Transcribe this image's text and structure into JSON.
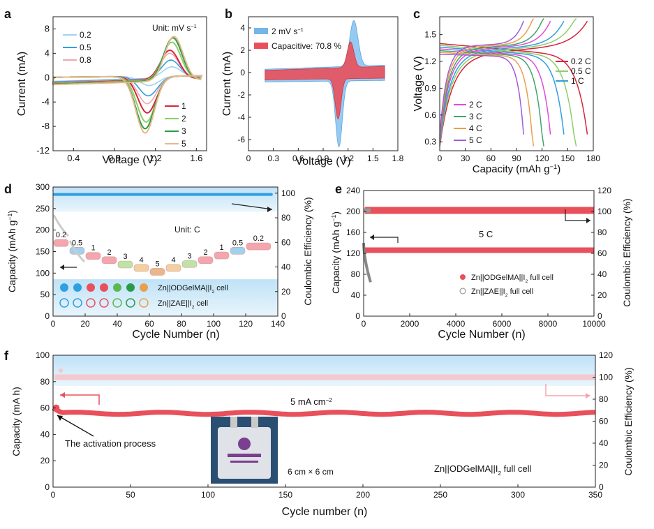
{
  "panels": {
    "a": {
      "letter": "a",
      "unit": "Unit: mV s",
      "unit_sup": "−1",
      "xlabel": "Voltage (V)",
      "ylabel": "Current (mA)"
    },
    "b": {
      "letter": "b",
      "xlabel": "Voltage (V)",
      "ylabel": "Current (mA)"
    },
    "c": {
      "letter": "c",
      "xlabel": "Capacity (mAh g",
      "xlabel_sup": "−1",
      "xlabel_end": ")",
      "ylabel": "Voltage (V)"
    },
    "d": {
      "letter": "d",
      "unit": "Unit: C",
      "xlabel": "Cycle Number (n)",
      "ylabel": "Capacity (mAh g",
      "ylabel_sup": "−1",
      "ylabel_end": ")",
      "y2label": "Coulombic Efficiency (%)"
    },
    "e": {
      "letter": "e",
      "rate_label": "5 C",
      "xlabel": "Cycle Number (n)",
      "ylabel": "Capacity (mAh g",
      "ylabel_sup": "−1",
      "ylabel_end": ")",
      "y2label": "Coulombic Efficiency (%)"
    },
    "f": {
      "letter": "f",
      "current_label": "5 mA cm",
      "current_sup": "−2",
      "activation": "The activation process",
      "size_label": "6 cm × 6 cm",
      "cell_label": "Zn||ODGelMA||I",
      "cell_sub": "2",
      "cell_end": " full cell",
      "xlabel": "Cycle number (n)",
      "ylabel": "Capacity (mA h)",
      "y2label": "Coulombic Efficiency (%)"
    }
  },
  "colors": {
    "blue": "#2f9fe0",
    "red": "#e8505b",
    "pink": "#f3a6ad",
    "lightblue": "#cfe9f8",
    "gray": "#9a9a9a"
  },
  "chart_data": [
    {
      "panel": "a",
      "type": "line",
      "xlim": [
        0.2,
        1.7
      ],
      "ylim": [
        -12,
        10
      ],
      "xticks": [
        0.4,
        0.8,
        1.2,
        1.6
      ],
      "yticks": [
        -12,
        -8,
        -4,
        0,
        4,
        8
      ],
      "series": [
        {
          "name": "0.2",
          "color": "#9ed3f0",
          "ox_peak": [
            1.36,
            1.8
          ],
          "red_peak": [
            1.14,
            -1.5
          ]
        },
        {
          "name": "0.5",
          "color": "#2f9fe0",
          "ox_peak": [
            1.35,
            3.0
          ],
          "red_peak": [
            1.13,
            -3.2
          ]
        },
        {
          "name": "0.8",
          "color": "#f3a6ad",
          "ox_peak": [
            1.34,
            4.2
          ],
          "red_peak": [
            1.12,
            -4.5
          ]
        },
        {
          "name": "1",
          "color": "#d9233b",
          "ox_peak": [
            1.34,
            4.8
          ],
          "red_peak": [
            1.12,
            -6.0
          ]
        },
        {
          "name": "2",
          "color": "#8ccf6a",
          "ox_peak": [
            1.36,
            6.2
          ],
          "red_peak": [
            1.11,
            -7.5
          ]
        },
        {
          "name": "3",
          "color": "#2a9a4a",
          "ox_peak": [
            1.37,
            7.0
          ],
          "red_peak": [
            1.1,
            -8.6
          ]
        },
        {
          "name": "5",
          "color": "#e8b88a",
          "ox_peak": [
            1.38,
            7.3
          ],
          "red_peak": [
            1.1,
            -9.3
          ]
        }
      ]
    },
    {
      "panel": "b",
      "type": "area",
      "xlim": [
        0.0,
        1.8
      ],
      "ylim": [
        -7,
        5
      ],
      "xticks": [
        0.0,
        0.3,
        0.6,
        0.9,
        1.2,
        1.5,
        1.8
      ],
      "yticks": [
        -6,
        -4,
        -2,
        0,
        2,
        4
      ],
      "series": [
        {
          "name": "2 mV s",
          "name_sup": "−1",
          "color": "#76b5e8",
          "ox_peak": [
            1.27,
            4.1
          ],
          "red_peak": [
            1.09,
            -5.9
          ]
        },
        {
          "name": "Capacitive: 70.8 %",
          "color": "#e8505b",
          "ox_peak": [
            1.23,
            2.3
          ],
          "red_peak": [
            1.08,
            -3.6
          ]
        }
      ]
    },
    {
      "panel": "c",
      "type": "line",
      "xlim": [
        0,
        180
      ],
      "ylim": [
        0.2,
        1.7
      ],
      "xticks": [
        0,
        30,
        60,
        90,
        120,
        150,
        180
      ],
      "yticks": [
        0.3,
        0.6,
        0.9,
        1.2,
        1.5
      ],
      "series": [
        {
          "name": "0.2 C",
          "color": "#d9233b",
          "capacity": 176
        },
        {
          "name": "0.5 C",
          "color": "#8ccf6a",
          "capacity": 160
        },
        {
          "name": "1 C",
          "color": "#2f9fe0",
          "capacity": 148
        },
        {
          "name": "2 C",
          "color": "#e04bd8",
          "capacity": 132
        },
        {
          "name": "3 C",
          "color": "#3fa56a",
          "capacity": 122
        },
        {
          "name": "4 C",
          "color": "#e8a04b",
          "capacity": 110
        },
        {
          "name": "5 C",
          "color": "#a05bd8",
          "capacity": 100
        }
      ]
    },
    {
      "panel": "d",
      "type": "scatter",
      "xlim": [
        0,
        140
      ],
      "ylim": [
        0,
        300
      ],
      "y2lim": [
        0,
        105
      ],
      "xticks": [
        0,
        20,
        40,
        60,
        80,
        100,
        120,
        140
      ],
      "yticks": [
        0,
        50,
        100,
        150,
        200,
        250,
        300
      ],
      "y2ticks": [
        0,
        20,
        40,
        60,
        80,
        100
      ],
      "steps": [
        {
          "rate": "0.2",
          "x": [
            0,
            10
          ],
          "odg": 170,
          "zae": 235
        },
        {
          "rate": "0.5",
          "x": [
            10,
            20
          ],
          "odg": 152,
          "zae": 175
        },
        {
          "rate": "1",
          "x": [
            20,
            30
          ],
          "odg": 140,
          "zae": 0
        },
        {
          "rate": "2",
          "x": [
            30,
            40
          ],
          "odg": 130,
          "zae": 0
        },
        {
          "rate": "3",
          "x": [
            40,
            50
          ],
          "odg": 120,
          "zae": 0
        },
        {
          "rate": "4",
          "x": [
            50,
            60
          ],
          "odg": 112,
          "zae": 0
        },
        {
          "rate": "5",
          "x": [
            60,
            70
          ],
          "odg": 103,
          "zae": 0
        },
        {
          "rate": "4",
          "x": [
            70,
            80
          ],
          "odg": 112,
          "zae": 0
        },
        {
          "rate": "3",
          "x": [
            80,
            90
          ],
          "odg": 121,
          "zae": 0
        },
        {
          "rate": "2",
          "x": [
            90,
            100
          ],
          "odg": 130,
          "zae": 0
        },
        {
          "rate": "1",
          "x": [
            100,
            110
          ],
          "odg": 141,
          "zae": 0
        },
        {
          "rate": "0.5",
          "x": [
            110,
            120
          ],
          "odg": 152,
          "zae": 0
        },
        {
          "rate": "0.2",
          "x": [
            120,
            136
          ],
          "odg": 162,
          "zae": 0
        }
      ],
      "ce_value": 99,
      "legend": [
        {
          "label": "Zn||ODGelMA||I",
          "sub": "2",
          "end": " cell"
        },
        {
          "label": "Zn||ZAE||I",
          "sub": "2",
          "end": " cell"
        }
      ]
    },
    {
      "panel": "e",
      "type": "scatter",
      "xlim": [
        0,
        10000
      ],
      "ylim": [
        0,
        240
      ],
      "y2lim": [
        0,
        120
      ],
      "xticks": [
        0,
        2000,
        4000,
        6000,
        8000,
        10000
      ],
      "yticks": [
        0,
        40,
        80,
        120,
        160,
        200,
        240
      ],
      "y2ticks": [
        0,
        20,
        40,
        60,
        80,
        100,
        120
      ],
      "series": [
        {
          "name": "Zn||ODGelMA||I2 full cell",
          "capacity": 126,
          "ce": 101
        },
        {
          "name": "Zn||ZAE||I2 full cell",
          "capacity_start": 140,
          "capacity_end": 65,
          "cycles": 300,
          "ce": 101
        }
      ],
      "legend": [
        {
          "label": "Zn||ODGelMA||I",
          "sub": "2",
          "end": " full cell"
        },
        {
          "label": "Zn||ZAE||I",
          "sub": "2",
          "end": " full cell"
        }
      ]
    },
    {
      "panel": "f",
      "type": "scatter",
      "xlim": [
        0,
        350
      ],
      "ylim": [
        0,
        100
      ],
      "y2lim": [
        0,
        120
      ],
      "xticks": [
        0,
        50,
        100,
        150,
        200,
        250,
        300,
        350
      ],
      "yticks": [
        0,
        20,
        40,
        60,
        80,
        100
      ],
      "y2ticks": [
        0,
        20,
        40,
        60,
        80,
        100,
        120
      ],
      "series": [
        {
          "name": "capacity",
          "initial": 60,
          "plateau": 56
        },
        {
          "name": "coulombic efficiency",
          "value": 100
        }
      ]
    }
  ]
}
